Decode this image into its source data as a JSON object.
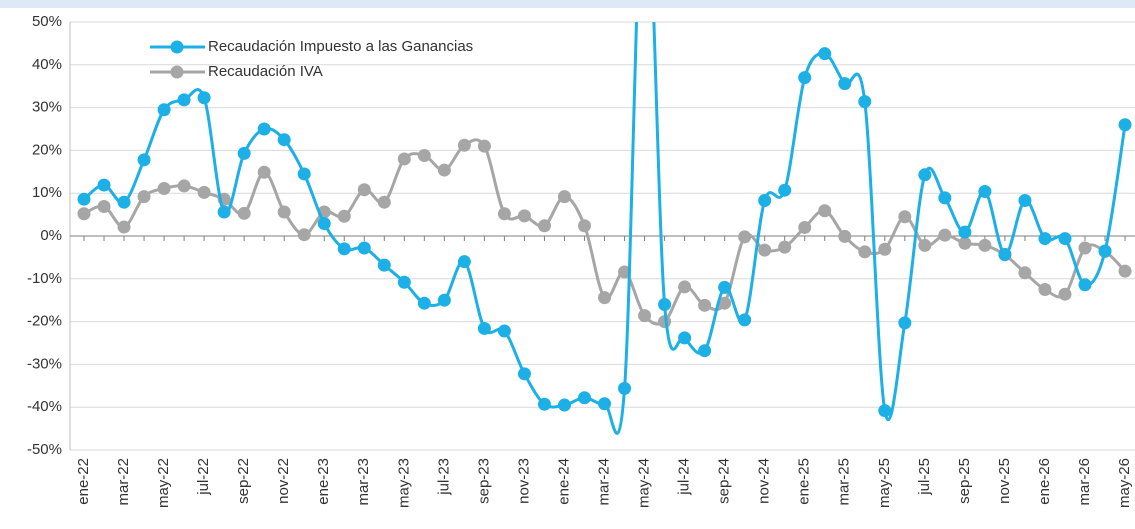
{
  "chart_data": {
    "type": "line",
    "categories": [
      "ene-22",
      null,
      "mar-22",
      null,
      "may-22",
      null,
      "jul-22",
      null,
      "sep-22",
      null,
      "nov-22",
      null,
      "ene-23",
      null,
      "mar-23",
      null,
      "may-23",
      null,
      "jul-23",
      null,
      "sep-23",
      null,
      "nov-23",
      null,
      "ene-24",
      null,
      "mar-24",
      null,
      "may-24",
      null,
      "jul-24",
      null,
      "sep-24",
      null,
      "nov-24",
      null,
      "ene-25",
      null,
      "mar-25",
      null,
      "may-25",
      null,
      "jul-25",
      null,
      "sep-25",
      null,
      "nov-25",
      null,
      "ene-26",
      null,
      "mar-26",
      null,
      "may-26"
    ],
    "series": [
      {
        "name": "Recaudación Impuesto a las Ganancias",
        "color": "#1cb0e6",
        "values": [
          8.6,
          11.9,
          7.9,
          17.8,
          29.5,
          31.8,
          32.3,
          5.6,
          19.3,
          25,
          22.5,
          14.5,
          2.9,
          -3,
          -2.8,
          -6.8,
          -10.8,
          -15.7,
          -15,
          -6,
          -21.6,
          -22.2,
          -32.2,
          -39.3,
          -39.5,
          -37.8,
          -39.2,
          -35.6,
          90,
          -16,
          -23.8,
          -26.8,
          -12,
          -19.6,
          8.3,
          10.7,
          37,
          42.6,
          35.6,
          31.4,
          -40.8,
          -20.3,
          14.3,
          8.9,
          0.9,
          10.4,
          -4.3,
          8.3,
          -0.6,
          -0.6,
          -11.4,
          -3.5,
          26
        ]
      },
      {
        "name": "Recaudación IVA",
        "color": "#a6a6a6",
        "values": [
          5.2,
          6.9,
          2.1,
          9.2,
          11.1,
          11.7,
          10.2,
          8.6,
          5.3,
          14.9,
          5.6,
          0.3,
          5.6,
          4.6,
          10.8,
          7.9,
          18,
          18.8,
          15.4,
          21.2,
          21,
          5.2,
          4.7,
          2.4,
          9.2,
          2.4,
          -14.4,
          -8.4,
          -18.6,
          -20,
          -11.9,
          -16.2,
          -15.7,
          -0.2,
          -3.3,
          -2.6,
          2,
          5.9,
          -0.1,
          -3.7,
          -3.1,
          4.5,
          -2.2,
          0.2,
          -1.7,
          -2.2,
          -4.4,
          -8.6,
          -12.5,
          -13.6,
          -2.8,
          -3.6,
          -8.2
        ]
      }
    ],
    "ylim": [
      -50,
      50
    ],
    "yticks": [
      {
        "value": -50,
        "label": "-50%"
      },
      {
        "value": -40,
        "label": "-40%"
      },
      {
        "value": -30,
        "label": "-30%"
      },
      {
        "value": -20,
        "label": "-20%"
      },
      {
        "value": -10,
        "label": "-10%"
      },
      {
        "value": 0,
        "label": "0%"
      },
      {
        "value": 10,
        "label": "10%"
      },
      {
        "value": 20,
        "label": "20%"
      },
      {
        "value": 30,
        "label": "30%"
      },
      {
        "value": 40,
        "label": "40%"
      },
      {
        "value": 50,
        "label": "50%"
      }
    ],
    "grid": true,
    "legend": "upper left"
  }
}
